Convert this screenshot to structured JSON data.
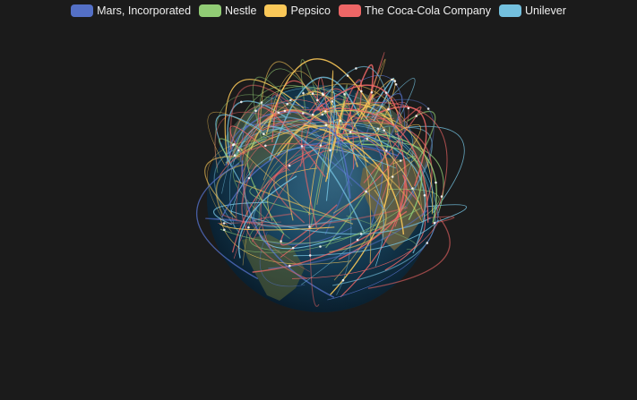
{
  "chart_data": {
    "type": "lines-3d-globe",
    "series": [
      {
        "name": "Mars, Incorporated",
        "color": "#5470c6"
      },
      {
        "name": "Nestle",
        "color": "#91cc75"
      },
      {
        "name": "Pepsico",
        "color": "#fac858"
      },
      {
        "name": "The Coca-Cola Company",
        "color": "#ee6666"
      },
      {
        "name": "Unilever",
        "color": "#73c0de"
      }
    ],
    "legend_position": "top-center",
    "background": "#1b1b1b"
  }
}
